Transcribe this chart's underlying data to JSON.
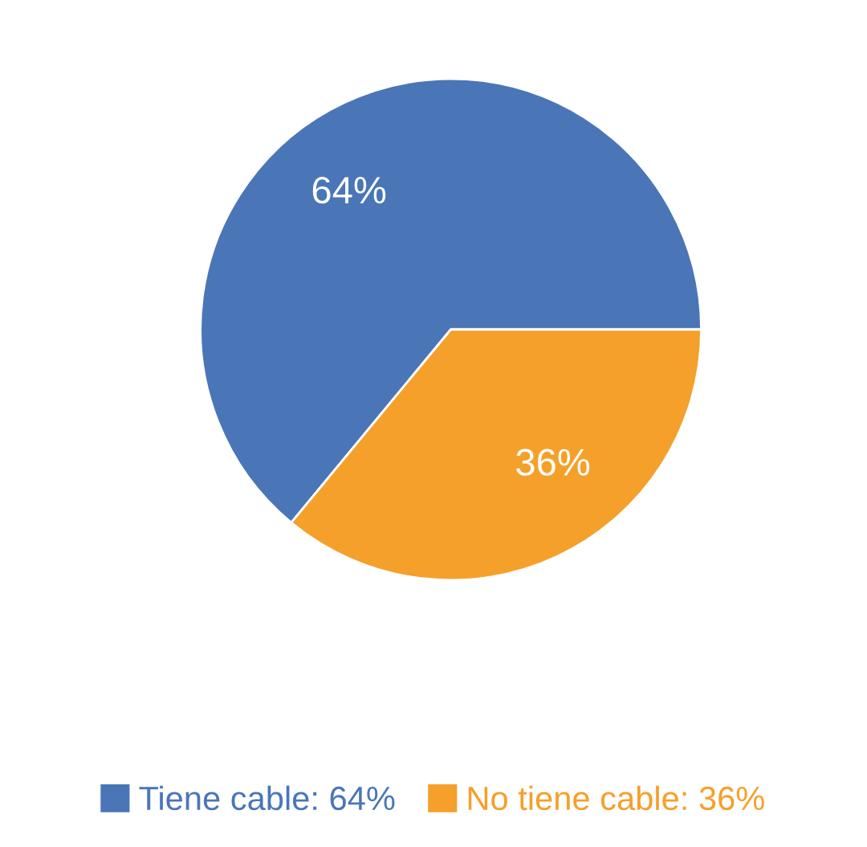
{
  "chart_data": {
    "type": "pie",
    "categories": [
      "Tiene cable",
      "No tiene cable"
    ],
    "values": [
      64,
      36
    ],
    "value_labels": [
      "64%",
      "36%"
    ],
    "colors": [
      "#4a76b8",
      "#f5a02a"
    ],
    "legend": "bottom"
  }
}
